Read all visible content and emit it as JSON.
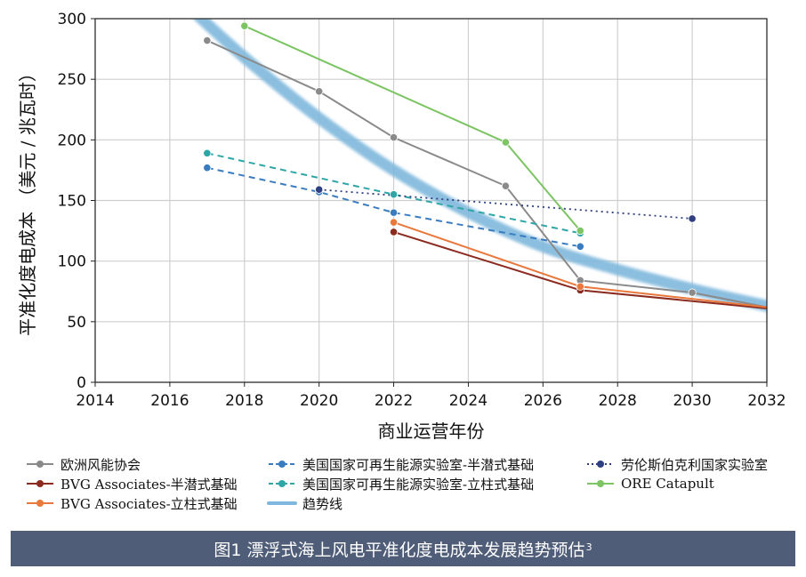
{
  "chart_data": {
    "type": "line",
    "title": "",
    "xlabel": "商业运营年份",
    "ylabel": "平准化度电成本 （美元 / 兆瓦时）",
    "xlim": [
      2014,
      2032
    ],
    "ylim": [
      0,
      300
    ],
    "xticks": [
      2014,
      2016,
      2018,
      2020,
      2022,
      2024,
      2026,
      2028,
      2030,
      2032
    ],
    "yticks": [
      0,
      50,
      100,
      150,
      200,
      250,
      300
    ],
    "grid": true,
    "legend_position": "bottom",
    "series": [
      {
        "name": "欧洲风能协会",
        "color": "#8a8a8a",
        "style": "solid",
        "points": [
          [
            2017,
            282
          ],
          [
            2020,
            240
          ],
          [
            2022,
            202
          ],
          [
            2025,
            162
          ],
          [
            2027,
            84
          ],
          [
            2030,
            74
          ],
          [
            2032,
            62
          ]
        ]
      },
      {
        "name": "BVG Associates-半潜式基础",
        "color": "#8b2a1e",
        "style": "solid",
        "points": [
          [
            2022,
            124
          ],
          [
            2027,
            76
          ],
          [
            2032,
            61
          ]
        ]
      },
      {
        "name": "BVG Associates-立柱式基础",
        "color": "#e8783c",
        "style": "solid",
        "points": [
          [
            2022,
            132
          ],
          [
            2027,
            79
          ],
          [
            2032,
            62
          ]
        ]
      },
      {
        "name": "趋势线",
        "color": "#7fb8dc",
        "style": "trend",
        "points": [
          [
            2016.5,
            310
          ],
          [
            2018,
            268
          ],
          [
            2020,
            218
          ],
          [
            2022,
            175
          ],
          [
            2024,
            140
          ],
          [
            2026,
            112
          ],
          [
            2028,
            93
          ],
          [
            2030,
            77
          ],
          [
            2032,
            63
          ]
        ]
      },
      {
        "name": "美国国家可再生能源实验室-半潜式基础",
        "color": "#3a7cc0",
        "style": "dashed",
        "points": [
          [
            2017,
            177
          ],
          [
            2020,
            157
          ],
          [
            2022,
            140
          ],
          [
            2027,
            112
          ]
        ]
      },
      {
        "name": "美国国家可再生能源实验室-立柱式基础",
        "color": "#2fa6a6",
        "style": "dashed",
        "points": [
          [
            2017,
            189
          ],
          [
            2022,
            155
          ],
          [
            2027,
            123
          ]
        ]
      },
      {
        "name": "劳伦斯伯克利国家实验室",
        "color": "#2f3f80",
        "style": "dotted",
        "points": [
          [
            2020,
            159
          ],
          [
            2030,
            135
          ]
        ]
      },
      {
        "name": "ORE Catapult",
        "color": "#7cc464",
        "style": "solid",
        "points": [
          [
            2018,
            294
          ],
          [
            2025,
            198
          ],
          [
            2027,
            125
          ]
        ]
      }
    ]
  },
  "caption": {
    "text": "图1  漂浮式海上风电平准化度电成本发展趋势预估",
    "superscript": "3"
  }
}
